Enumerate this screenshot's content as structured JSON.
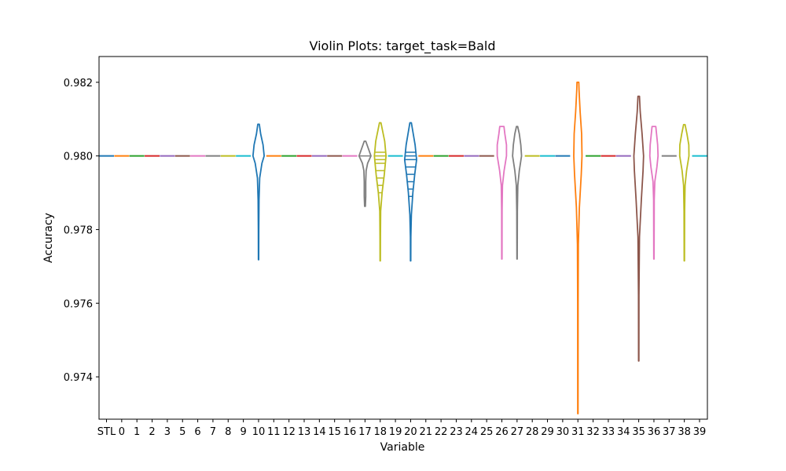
{
  "chart_data": {
    "type": "violin",
    "title": "Violin Plots: target_task=Bald",
    "xlabel": "Variable",
    "ylabel": "Accuracy",
    "ylim": [
      0.97285,
      0.9827
    ],
    "yticks": [
      "0.974",
      "0.976",
      "0.978",
      "0.980",
      "0.982"
    ],
    "ytick_values": [
      0.974,
      0.976,
      0.978,
      0.98,
      0.982
    ],
    "categories": [
      "STL",
      "0",
      "1",
      "2",
      "3",
      "5",
      "6",
      "7",
      "8",
      "9",
      "10",
      "11",
      "12",
      "13",
      "14",
      "15",
      "16",
      "17",
      "18",
      "19",
      "20",
      "21",
      "22",
      "23",
      "24",
      "25",
      "26",
      "27",
      "28",
      "29",
      "30",
      "31",
      "32",
      "33",
      "34",
      "35",
      "36",
      "37",
      "38",
      "39"
    ],
    "colors": [
      "#1f77b4",
      "#ff7f0e",
      "#2ca02c",
      "#d62728",
      "#9467bd",
      "#8c564b",
      "#e377c2",
      "#7f7f7f",
      "#bcbd22",
      "#17becf"
    ],
    "series": [
      {
        "variable": "STL",
        "min": 0.98,
        "max": 0.98,
        "median": 0.98
      },
      {
        "variable": "0",
        "min": 0.98,
        "max": 0.98,
        "median": 0.98
      },
      {
        "variable": "1",
        "min": 0.98,
        "max": 0.98,
        "median": 0.98
      },
      {
        "variable": "2",
        "min": 0.98,
        "max": 0.98,
        "median": 0.98
      },
      {
        "variable": "3",
        "min": 0.98,
        "max": 0.98,
        "median": 0.98
      },
      {
        "variable": "5",
        "min": 0.98,
        "max": 0.98,
        "median": 0.98
      },
      {
        "variable": "6",
        "min": 0.98,
        "max": 0.98,
        "median": 0.98
      },
      {
        "variable": "7",
        "min": 0.98,
        "max": 0.98,
        "median": 0.98
      },
      {
        "variable": "8",
        "min": 0.98,
        "max": 0.98,
        "median": 0.98
      },
      {
        "variable": "9",
        "min": 0.98,
        "max": 0.98,
        "median": 0.98
      },
      {
        "variable": "10",
        "min": 0.97718,
        "max": 0.98086,
        "median": 0.98,
        "profile": [
          [
            0.97718,
            0.02
          ],
          [
            0.978,
            0.03
          ],
          [
            0.9788,
            0.06
          ],
          [
            0.9794,
            0.15
          ],
          [
            0.9798,
            0.45
          ],
          [
            0.98,
            0.75
          ],
          [
            0.9803,
            0.6
          ],
          [
            0.9806,
            0.28
          ],
          [
            0.98086,
            0.1
          ]
        ]
      },
      {
        "variable": "11",
        "min": 0.98,
        "max": 0.98,
        "median": 0.98
      },
      {
        "variable": "12",
        "min": 0.98,
        "max": 0.98,
        "median": 0.98
      },
      {
        "variable": "13",
        "min": 0.98,
        "max": 0.98,
        "median": 0.98
      },
      {
        "variable": "14",
        "min": 0.98,
        "max": 0.98,
        "median": 0.98
      },
      {
        "variable": "15",
        "min": 0.98,
        "max": 0.98,
        "median": 0.98
      },
      {
        "variable": "16",
        "min": 0.98,
        "max": 0.98,
        "median": 0.98
      },
      {
        "variable": "17",
        "min": 0.97863,
        "max": 0.9804,
        "median": 0.98,
        "profile": [
          [
            0.97863,
            0.05
          ],
          [
            0.9789,
            0.1
          ],
          [
            0.9793,
            0.1
          ],
          [
            0.9796,
            0.15
          ],
          [
            0.9798,
            0.35
          ],
          [
            0.98,
            0.8
          ],
          [
            0.9802,
            0.45
          ],
          [
            0.9804,
            0.1
          ]
        ],
        "quartile_lines": [
          0.98
        ]
      },
      {
        "variable": "18",
        "min": 0.97715,
        "max": 0.9809,
        "median": 0.98,
        "profile": [
          [
            0.97715,
            0.02
          ],
          [
            0.9778,
            0.03
          ],
          [
            0.9785,
            0.06
          ],
          [
            0.979,
            0.25
          ],
          [
            0.9795,
            0.55
          ],
          [
            0.98,
            0.78
          ],
          [
            0.9804,
            0.6
          ],
          [
            0.9807,
            0.3
          ],
          [
            0.9809,
            0.1
          ]
        ],
        "quartile_lines": [
          0.979,
          0.9792,
          0.9794,
          0.9796,
          0.9798,
          0.9799,
          0.98,
          0.9801
        ]
      },
      {
        "variable": "19",
        "min": 0.98,
        "max": 0.98,
        "median": 0.98
      },
      {
        "variable": "20",
        "min": 0.97715,
        "max": 0.9809,
        "median": 0.98,
        "profile": [
          [
            0.97715,
            0.02
          ],
          [
            0.9778,
            0.03
          ],
          [
            0.9784,
            0.1
          ],
          [
            0.979,
            0.3
          ],
          [
            0.9795,
            0.55
          ],
          [
            0.9799,
            0.8
          ],
          [
            0.9803,
            0.6
          ],
          [
            0.9806,
            0.35
          ],
          [
            0.9809,
            0.1
          ]
        ],
        "quartile_lines": [
          0.978,
          0.9789,
          0.9791,
          0.9793,
          0.9795,
          0.9797,
          0.9799,
          0.98,
          0.9801
        ]
      },
      {
        "variable": "21",
        "min": 0.98,
        "max": 0.98,
        "median": 0.98
      },
      {
        "variable": "22",
        "min": 0.98,
        "max": 0.98,
        "median": 0.98
      },
      {
        "variable": "23",
        "min": 0.98,
        "max": 0.98,
        "median": 0.98
      },
      {
        "variable": "24",
        "min": 0.98,
        "max": 0.98,
        "median": 0.98
      },
      {
        "variable": "25",
        "min": 0.98,
        "max": 0.98,
        "median": 0.98
      },
      {
        "variable": "26",
        "min": 0.9772,
        "max": 0.9808,
        "median": 0.98,
        "profile": [
          [
            0.9772,
            0.02
          ],
          [
            0.9785,
            0.03
          ],
          [
            0.9792,
            0.08
          ],
          [
            0.9796,
            0.3
          ],
          [
            0.98,
            0.62
          ],
          [
            0.9803,
            0.62
          ],
          [
            0.9806,
            0.4
          ],
          [
            0.9808,
            0.28
          ]
        ]
      },
      {
        "variable": "27",
        "min": 0.9772,
        "max": 0.9808,
        "median": 0.98,
        "profile": [
          [
            0.9772,
            0.02
          ],
          [
            0.9785,
            0.04
          ],
          [
            0.9792,
            0.1
          ],
          [
            0.9796,
            0.3
          ],
          [
            0.98,
            0.6
          ],
          [
            0.9803,
            0.5
          ],
          [
            0.9806,
            0.3
          ],
          [
            0.9808,
            0.08
          ]
        ]
      },
      {
        "variable": "28",
        "min": 0.98,
        "max": 0.98,
        "median": 0.98
      },
      {
        "variable": "29",
        "min": 0.98,
        "max": 0.98,
        "median": 0.98
      },
      {
        "variable": "30",
        "min": 0.98,
        "max": 0.98,
        "median": 0.98
      },
      {
        "variable": "31",
        "min": 0.973,
        "max": 0.982,
        "median": 0.98,
        "profile": [
          [
            0.973,
            0.02
          ],
          [
            0.976,
            0.03
          ],
          [
            0.9776,
            0.06
          ],
          [
            0.9786,
            0.2
          ],
          [
            0.9795,
            0.45
          ],
          [
            0.98,
            0.55
          ],
          [
            0.9806,
            0.5
          ],
          [
            0.9812,
            0.3
          ],
          [
            0.9818,
            0.15
          ],
          [
            0.982,
            0.12
          ]
        ]
      },
      {
        "variable": "32",
        "min": 0.98,
        "max": 0.98,
        "median": 0.98
      },
      {
        "variable": "33",
        "min": 0.98,
        "max": 0.98,
        "median": 0.98
      },
      {
        "variable": "34",
        "min": 0.98,
        "max": 0.98,
        "median": 0.98
      },
      {
        "variable": "35",
        "min": 0.97443,
        "max": 0.98162,
        "median": 0.98,
        "profile": [
          [
            0.97443,
            0.02
          ],
          [
            0.9762,
            0.03
          ],
          [
            0.9778,
            0.1
          ],
          [
            0.9788,
            0.35
          ],
          [
            0.9796,
            0.58
          ],
          [
            0.98,
            0.65
          ],
          [
            0.9806,
            0.45
          ],
          [
            0.9812,
            0.2
          ],
          [
            0.98162,
            0.1
          ]
        ]
      },
      {
        "variable": "36",
        "min": 0.9772,
        "max": 0.9808,
        "median": 0.98,
        "profile": [
          [
            0.9772,
            0.02
          ],
          [
            0.9788,
            0.04
          ],
          [
            0.9793,
            0.12
          ],
          [
            0.9797,
            0.4
          ],
          [
            0.98,
            0.55
          ],
          [
            0.9803,
            0.5
          ],
          [
            0.9806,
            0.35
          ],
          [
            0.9808,
            0.25
          ]
        ]
      },
      {
        "variable": "37",
        "min": 0.98,
        "max": 0.98,
        "median": 0.98
      },
      {
        "variable": "38",
        "min": 0.97715,
        "max": 0.98085,
        "median": 0.98,
        "profile": [
          [
            0.97715,
            0.02
          ],
          [
            0.9785,
            0.04
          ],
          [
            0.9792,
            0.1
          ],
          [
            0.9796,
            0.3
          ],
          [
            0.98,
            0.62
          ],
          [
            0.9803,
            0.6
          ],
          [
            0.9806,
            0.35
          ],
          [
            0.98085,
            0.1
          ]
        ]
      },
      {
        "variable": "39",
        "min": 0.98,
        "max": 0.98,
        "median": 0.98
      }
    ],
    "grid": false,
    "legend": "none"
  }
}
